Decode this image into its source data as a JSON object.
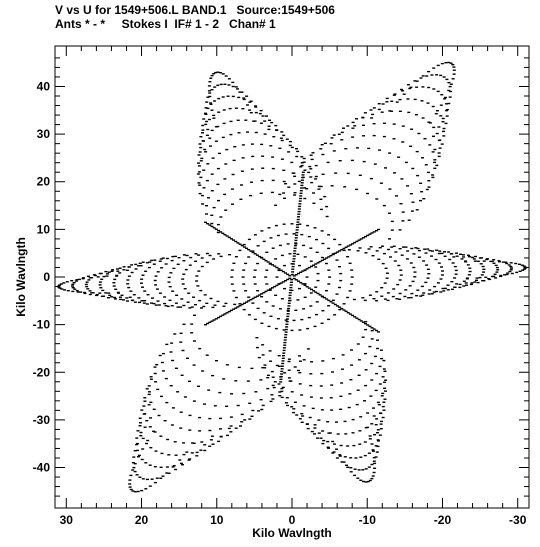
{
  "header": {
    "line1": "V vs U for 1549+506.L BAND.1   Source:1549+506",
    "line2": "Ants * - *     Stokes I  IF# 1 - 2   Chan# 1"
  },
  "chart_data": {
    "type": "scatter",
    "title": "V vs U for 1549+506.L BAND.1   Source:1549+506",
    "subtitle": "Ants * - *     Stokes I  IF# 1 - 2   Chan# 1",
    "xlabel": "Kilo Wavlngth",
    "ylabel": "Kilo Wavlngth",
    "xlim": [
      31.5,
      -31.5
    ],
    "ylim": [
      -48.5,
      48.5
    ],
    "x_ticks": [
      30,
      20,
      10,
      0,
      -10,
      -20,
      -30
    ],
    "y_ticks": [
      40,
      30,
      20,
      10,
      0,
      -10,
      -20,
      -30,
      -40
    ],
    "grid": false,
    "points_description": "uv coverage: six-armed star pattern of short dashes, point-symmetric about origin",
    "arm_endpoints": [
      {
        "u": 10,
        "v": 43
      },
      {
        "u": -21,
        "v": 45
      },
      {
        "u": -31,
        "v": 2
      },
      {
        "u": -10,
        "v": -43
      },
      {
        "u": 21,
        "v": -45
      },
      {
        "u": 31,
        "v": -2
      }
    ],
    "baseline_tracks": [
      {
        "u_end": 11.5,
        "v_end": 11.5
      },
      {
        "u_end": -11.5,
        "v_end": 10
      },
      {
        "u_end": -1.5,
        "v_end": 22
      },
      {
        "u_end": -11.5,
        "v_end": -11.5
      },
      {
        "u_end": 11.5,
        "v_end": -10
      },
      {
        "u_end": 1.5,
        "v_end": -22
      }
    ]
  }
}
